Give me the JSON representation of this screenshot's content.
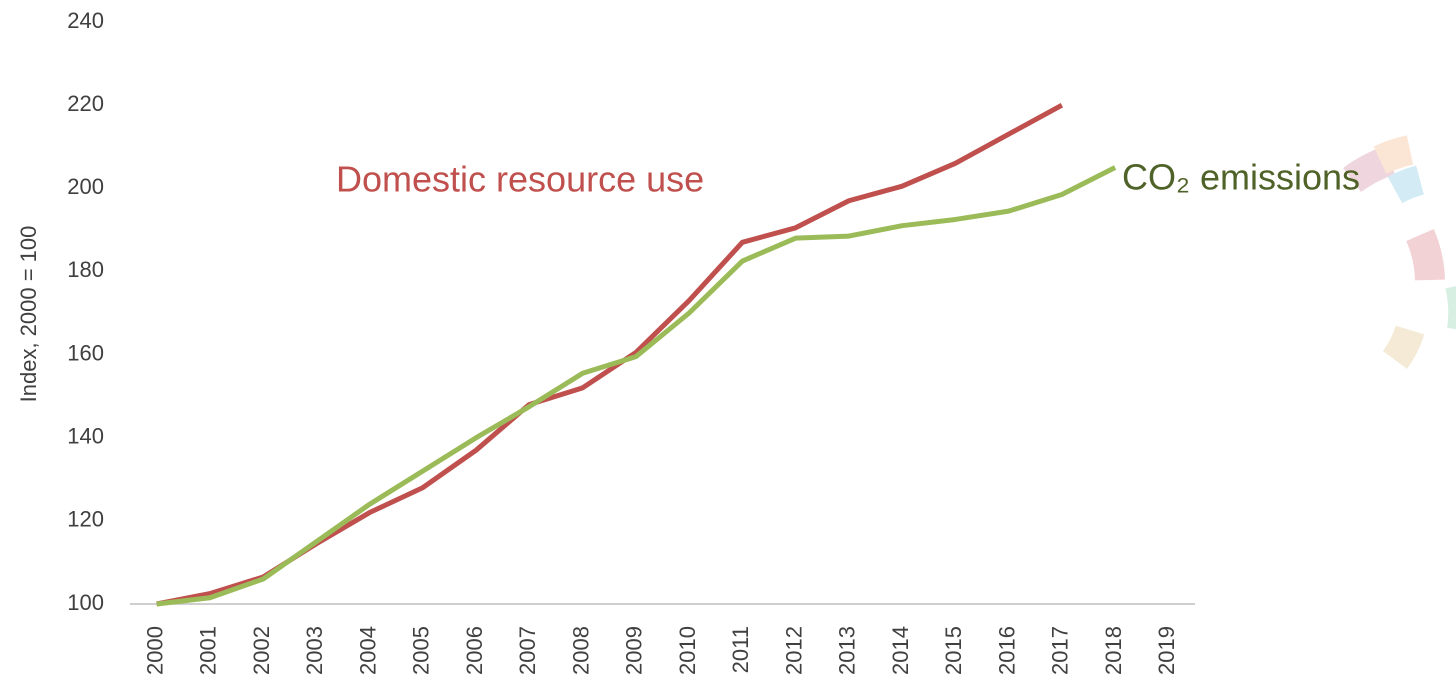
{
  "chart_data": {
    "type": "line",
    "y_label": "Index, 2000 = 100",
    "categories": [
      "2000",
      "2001",
      "2002",
      "2003",
      "2004",
      "2005",
      "2006",
      "2007",
      "2008",
      "2009",
      "2010",
      "2011",
      "2012",
      "2013",
      "2014",
      "2015",
      "2016",
      "2017",
      "2018",
      "2019"
    ],
    "series": [
      {
        "name": "Domestic resource use",
        "color": "#c0504d",
        "values": [
          100,
          102.5,
          106.5,
          114.5,
          122,
          128,
          137,
          148,
          152,
          160.5,
          173,
          187,
          190.5,
          197,
          200.5,
          206,
          213,
          220,
          null,
          null
        ]
      },
      {
        "name": "CO₂ emissions",
        "color": "#9bbb59",
        "values": [
          100,
          101.5,
          106,
          115,
          124,
          132,
          140,
          147.5,
          155.5,
          159.5,
          170,
          182.5,
          188,
          188.5,
          191,
          192.5,
          194.5,
          198.5,
          205,
          null
        ]
      }
    ],
    "ylim": [
      100,
      240
    ],
    "yticks": [
      100,
      120,
      140,
      160,
      180,
      200,
      220,
      240
    ],
    "grid": false
  }
}
